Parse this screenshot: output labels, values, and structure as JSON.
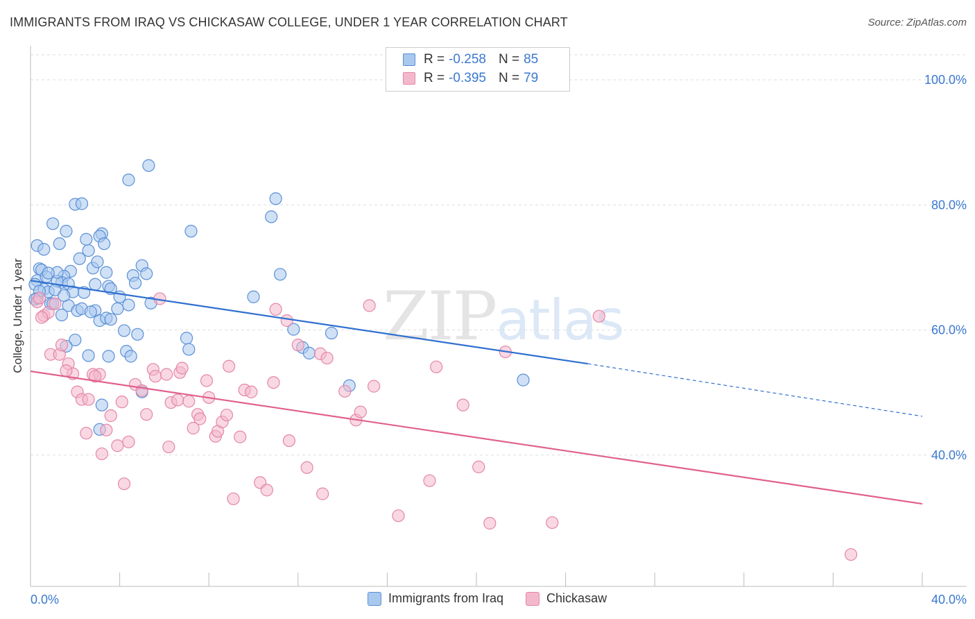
{
  "title": "IMMIGRANTS FROM IRAQ VS CHICKASAW COLLEGE, UNDER 1 YEAR CORRELATION CHART",
  "source": "Source: ZipAtlas.com",
  "watermark": {
    "zip": "ZIP",
    "atlas": "atlas"
  },
  "legend": {
    "r_label": "R =",
    "n_label": "N =",
    "rows": [
      {
        "r": "-0.258",
        "n": "85"
      },
      {
        "r": "-0.395",
        "n": "79"
      }
    ]
  },
  "colors": {
    "blue_fill": "#a9c8ee",
    "blue_stroke": "#5a8fd6",
    "blue_line": "#2f6fd0",
    "pink_fill": "#f4b8cc",
    "pink_stroke": "#e486a6",
    "pink_line": "#e0608e",
    "tick_label": "#3a78d0",
    "grid": "#dddddd"
  },
  "chart_data": {
    "type": "scatter",
    "title": "IMMIGRANTS FROM IRAQ VS CHICKASAW COLLEGE, UNDER 1 YEAR CORRELATION CHART",
    "xlabel": "",
    "ylabel": "College, Under 1 year",
    "xlim": [
      0,
      40
    ],
    "ylim": [
      19,
      104
    ],
    "x_tick_labels": [
      "0.0%",
      "40.0%"
    ],
    "y_ticks": [
      40,
      60,
      80,
      100
    ],
    "y_tick_labels": [
      "40.0%",
      "60.0%",
      "80.0%",
      "100.0%"
    ],
    "grid": true,
    "legend_position": "top-center",
    "series": [
      {
        "name": "Immigrants from Iraq",
        "r": -0.258,
        "n": 85,
        "trend": {
          "x0": 0,
          "y0": 67.9,
          "x1": 25,
          "y1": 54.6,
          "dashed_to_x": 40,
          "dashed_to_y": 46.2
        },
        "points": [
          [
            0.3,
            73.5
          ],
          [
            0.6,
            72.9
          ],
          [
            0.4,
            69.8
          ],
          [
            0.5,
            69.6
          ],
          [
            0.3,
            67.9
          ],
          [
            0.2,
            67.3
          ],
          [
            0.6,
            66.5
          ],
          [
            0.8,
            66.1
          ],
          [
            0.3,
            65.1
          ],
          [
            0.9,
            64.2
          ],
          [
            1.0,
            77.0
          ],
          [
            1.3,
            73.8
          ],
          [
            1.6,
            75.8
          ],
          [
            1.8,
            69.4
          ],
          [
            1.5,
            68.6
          ],
          [
            1.4,
            67.6
          ],
          [
            1.2,
            67.8
          ],
          [
            1.7,
            67.4
          ],
          [
            1.1,
            66.4
          ],
          [
            1.9,
            66.1
          ],
          [
            1.7,
            63.9
          ],
          [
            2.1,
            63.1
          ],
          [
            2.3,
            63.4
          ],
          [
            2.2,
            71.4
          ],
          [
            2.0,
            80.1
          ],
          [
            2.3,
            80.2
          ],
          [
            2.6,
            72.7
          ],
          [
            2.5,
            74.5
          ],
          [
            2.8,
            69.9
          ],
          [
            2.9,
            67.3
          ],
          [
            3.2,
            75.4
          ],
          [
            3.1,
            75.0
          ],
          [
            3.3,
            73.8
          ],
          [
            3.0,
            70.9
          ],
          [
            3.4,
            69.2
          ],
          [
            3.5,
            67.0
          ],
          [
            3.6,
            66.6
          ],
          [
            2.9,
            63.1
          ],
          [
            3.1,
            61.5
          ],
          [
            3.4,
            61.9
          ],
          [
            3.6,
            61.7
          ],
          [
            4.0,
            65.3
          ],
          [
            4.4,
            64.0
          ],
          [
            4.6,
            68.7
          ],
          [
            4.7,
            67.5
          ],
          [
            5.0,
            70.3
          ],
          [
            5.2,
            69.0
          ],
          [
            5.4,
            64.3
          ],
          [
            4.2,
            59.9
          ],
          [
            4.8,
            59.3
          ],
          [
            4.3,
            56.6
          ],
          [
            4.5,
            55.8
          ],
          [
            5.0,
            50.1
          ],
          [
            3.5,
            55.8
          ],
          [
            2.6,
            55.9
          ],
          [
            2.0,
            58.4
          ],
          [
            1.6,
            57.4
          ],
          [
            3.2,
            48.0
          ],
          [
            3.1,
            44.1
          ],
          [
            4.4,
            84.0
          ],
          [
            5.3,
            86.3
          ],
          [
            7.2,
            75.8
          ],
          [
            7.0,
            58.7
          ],
          [
            7.1,
            56.9
          ],
          [
            10.0,
            65.3
          ],
          [
            11.0,
            81.0
          ],
          [
            10.8,
            78.1
          ],
          [
            11.2,
            68.9
          ],
          [
            11.8,
            60.1
          ],
          [
            12.2,
            57.2
          ],
          [
            12.5,
            56.3
          ],
          [
            13.5,
            59.5
          ],
          [
            14.3,
            51.1
          ],
          [
            22.1,
            52.0
          ],
          [
            1.0,
            64.2
          ],
          [
            1.5,
            65.5
          ],
          [
            2.4,
            66.0
          ],
          [
            0.7,
            68.5
          ],
          [
            1.2,
            69.2
          ],
          [
            0.4,
            66.2
          ],
          [
            0.8,
            69.1
          ],
          [
            0.2,
            64.9
          ],
          [
            2.7,
            62.9
          ],
          [
            3.9,
            63.4
          ],
          [
            1.4,
            62.4
          ]
        ]
      },
      {
        "name": "Chickasaw",
        "r": -0.395,
        "n": 79,
        "trend": {
          "x0": 0,
          "y0": 53.4,
          "x1": 40,
          "y1": 32.2
        },
        "points": [
          [
            0.3,
            64.5
          ],
          [
            0.6,
            62.3
          ],
          [
            0.8,
            62.8
          ],
          [
            0.5,
            62.0
          ],
          [
            0.9,
            56.1
          ],
          [
            1.3,
            56.1
          ],
          [
            1.4,
            57.6
          ],
          [
            1.7,
            54.6
          ],
          [
            1.9,
            53.0
          ],
          [
            2.1,
            50.1
          ],
          [
            2.3,
            48.9
          ],
          [
            2.6,
            48.9
          ],
          [
            2.8,
            52.9
          ],
          [
            3.1,
            52.9
          ],
          [
            3.4,
            44.0
          ],
          [
            3.2,
            40.2
          ],
          [
            2.5,
            43.5
          ],
          [
            3.6,
            46.3
          ],
          [
            3.9,
            41.5
          ],
          [
            4.2,
            35.4
          ],
          [
            4.4,
            42.1
          ],
          [
            4.1,
            48.5
          ],
          [
            4.7,
            51.3
          ],
          [
            5.0,
            50.3
          ],
          [
            5.2,
            46.5
          ],
          [
            5.5,
            53.7
          ],
          [
            5.6,
            52.6
          ],
          [
            5.8,
            65.0
          ],
          [
            6.1,
            52.9
          ],
          [
            6.2,
            41.3
          ],
          [
            6.3,
            48.4
          ],
          [
            6.6,
            48.8
          ],
          [
            6.7,
            53.2
          ],
          [
            6.8,
            53.9
          ],
          [
            7.1,
            48.6
          ],
          [
            7.3,
            44.3
          ],
          [
            7.5,
            46.5
          ],
          [
            7.6,
            45.8
          ],
          [
            7.9,
            51.9
          ],
          [
            8.0,
            49.2
          ],
          [
            8.3,
            43.0
          ],
          [
            8.4,
            43.8
          ],
          [
            8.6,
            45.3
          ],
          [
            8.8,
            46.4
          ],
          [
            8.9,
            54.2
          ],
          [
            9.1,
            33.0
          ],
          [
            9.4,
            42.9
          ],
          [
            9.6,
            50.4
          ],
          [
            9.9,
            50.1
          ],
          [
            10.3,
            35.6
          ],
          [
            10.6,
            34.4
          ],
          [
            10.9,
            51.6
          ],
          [
            11.0,
            63.3
          ],
          [
            11.5,
            61.5
          ],
          [
            11.6,
            42.3
          ],
          [
            12.0,
            57.6
          ],
          [
            12.4,
            38.0
          ],
          [
            13.1,
            33.8
          ],
          [
            13.0,
            56.2
          ],
          [
            13.3,
            55.5
          ],
          [
            14.1,
            50.2
          ],
          [
            14.6,
            45.6
          ],
          [
            14.8,
            46.9
          ],
          [
            15.2,
            63.9
          ],
          [
            15.4,
            51.0
          ],
          [
            16.5,
            30.3
          ],
          [
            17.9,
            35.9
          ],
          [
            18.2,
            54.1
          ],
          [
            19.4,
            48.0
          ],
          [
            20.1,
            38.1
          ],
          [
            20.6,
            29.1
          ],
          [
            21.3,
            56.5
          ],
          [
            23.4,
            29.2
          ],
          [
            25.5,
            62.2
          ],
          [
            36.8,
            24.1
          ],
          [
            1.1,
            64.2
          ],
          [
            1.6,
            53.5
          ],
          [
            2.9,
            52.6
          ],
          [
            0.4,
            65.1
          ]
        ]
      }
    ]
  }
}
